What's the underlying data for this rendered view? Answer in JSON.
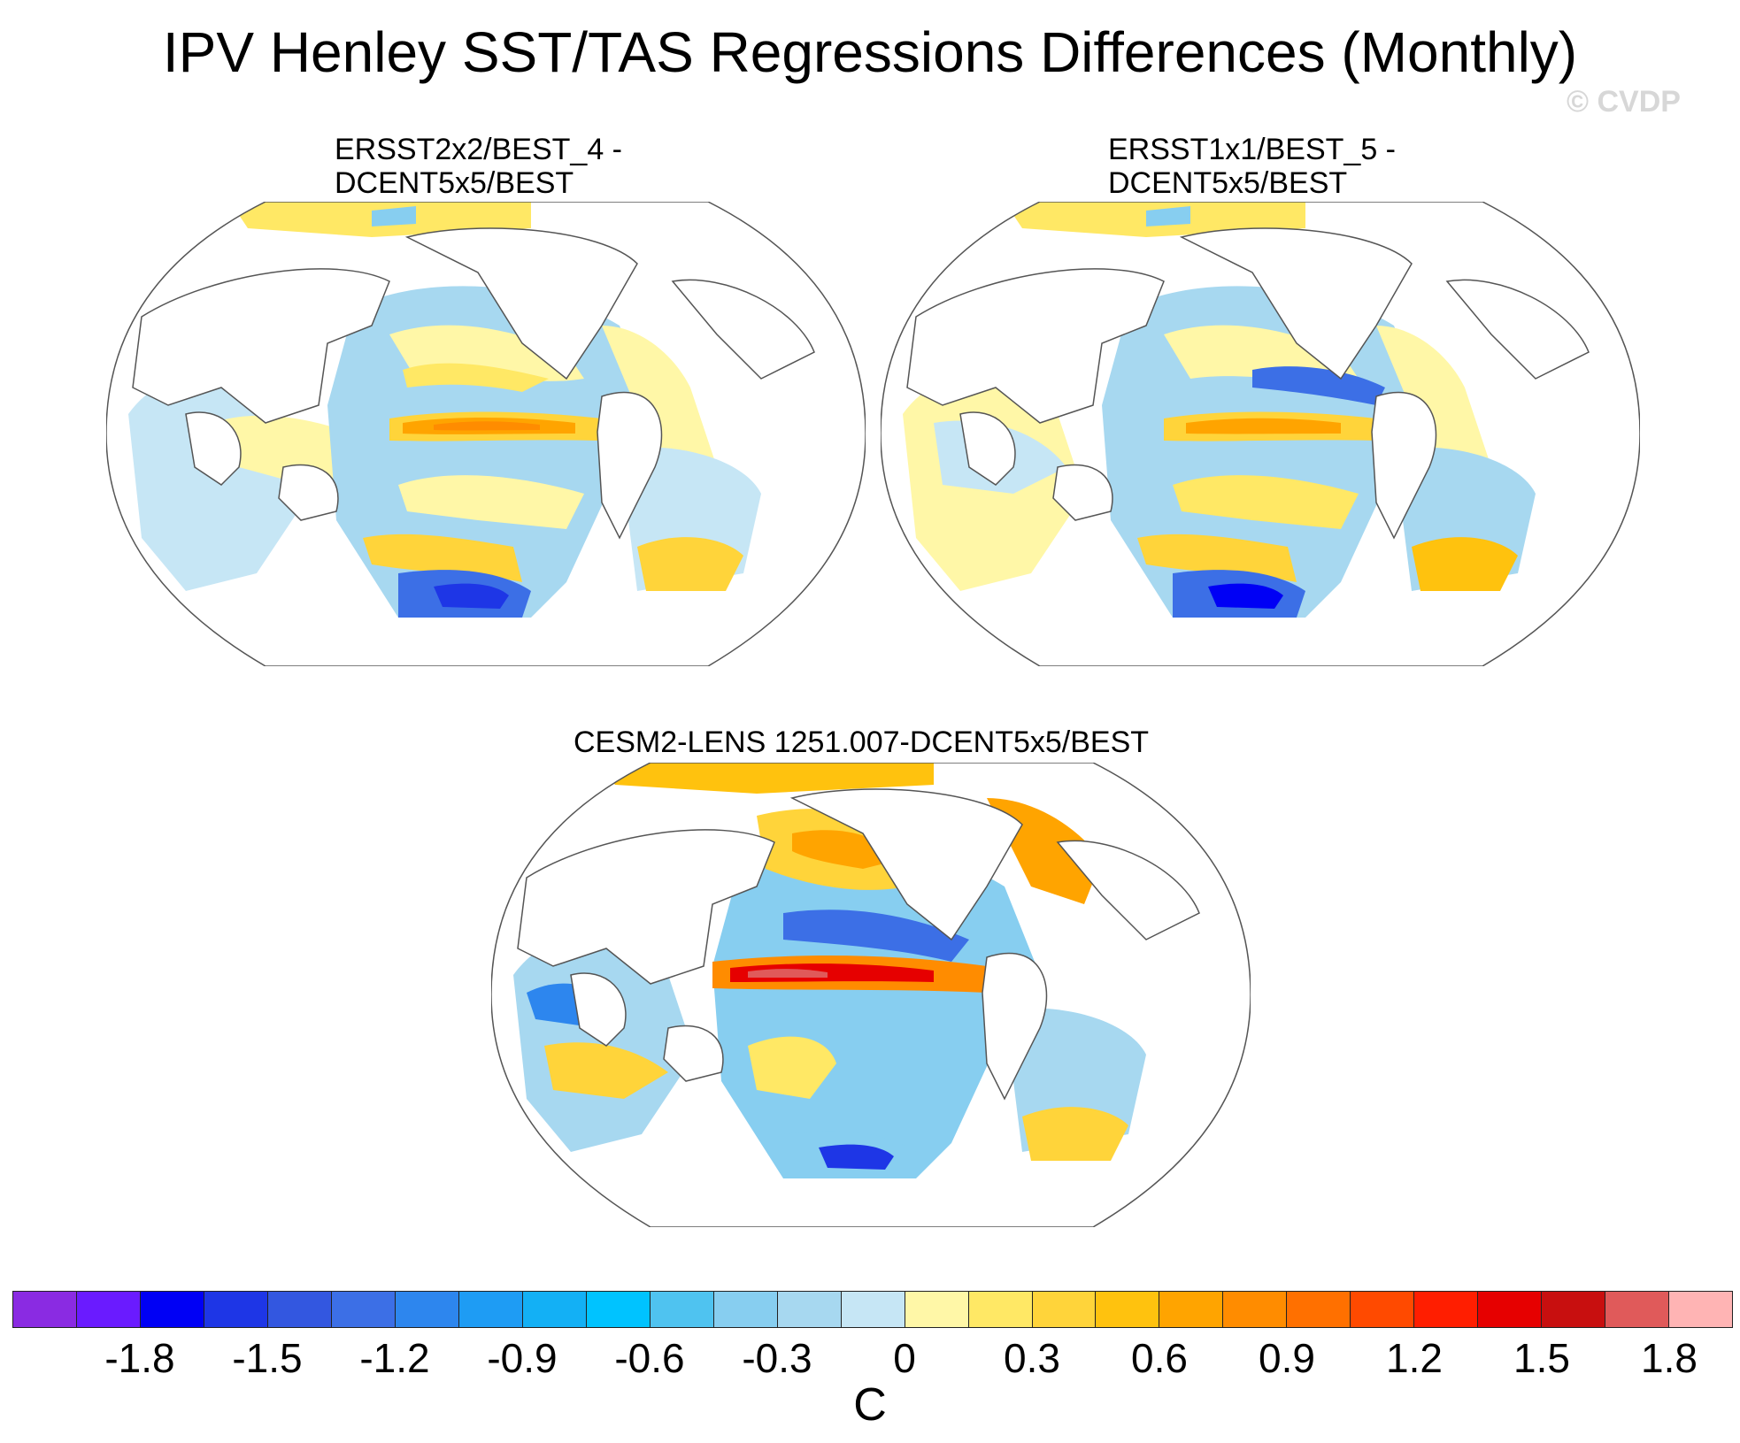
{
  "title": "IPV Henley SST/TAS Regressions Differences (Monthly)",
  "watermark": "© CVDP",
  "panels": [
    {
      "title_line1": "ERSST2x2/BEST_4 -",
      "title_line2": "DCENT5x5/BEST"
    },
    {
      "title_line1": "ERSST1x1/BEST_5 -",
      "title_line2": "DCENT5x5/BEST"
    },
    {
      "title_line1": "CESM2-LENS 1251.007-DCENT5x5/BEST"
    }
  ],
  "colorbar": {
    "colors": [
      "#8a2be2",
      "#6a1bff",
      "#0000f5",
      "#1e36e6",
      "#3357e0",
      "#3c6fe6",
      "#2d86ee",
      "#1e9cf4",
      "#13b0f5",
      "#00c3ff",
      "#4fc3f0",
      "#87cef0",
      "#a7d8f0",
      "#c6e6f5",
      "#fff7a7",
      "#ffe865",
      "#ffd43a",
      "#ffc20e",
      "#ffa400",
      "#ff8c00",
      "#ff7000",
      "#ff4a00",
      "#ff1e00",
      "#e60000",
      "#c80f0f",
      "#e05a5a",
      "#ffb4b4"
    ],
    "labels": [
      "-1.8",
      "-1.5",
      "-1.2",
      "-0.9",
      "-0.6",
      "-0.3",
      "0",
      "0.3",
      "0.6",
      "0.9",
      "1.2",
      "1.5",
      "1.8"
    ],
    "units": "C"
  }
}
